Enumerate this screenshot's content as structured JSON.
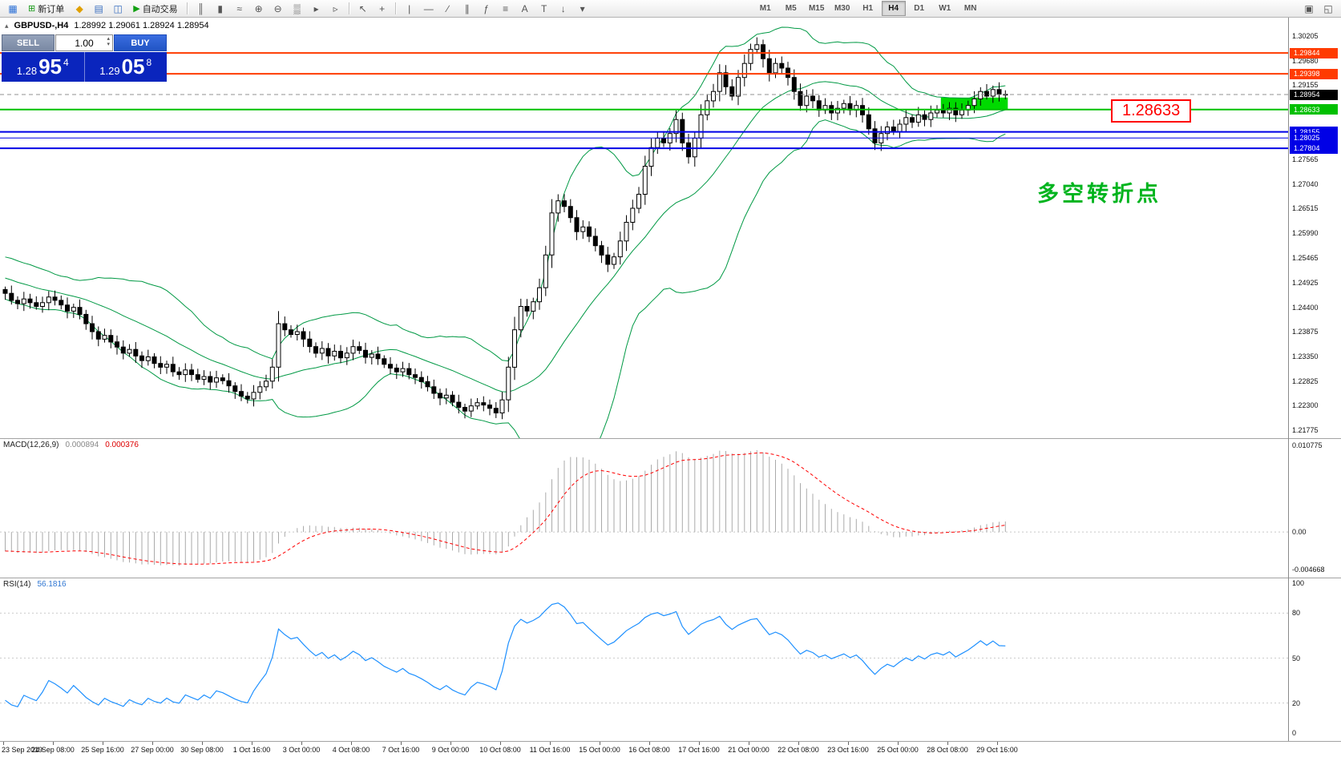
{
  "toolbar": {
    "items": [
      {
        "type": "icon",
        "name": "app-icon",
        "glyph": "▦",
        "color": "#2a6fd6"
      },
      {
        "type": "button",
        "name": "new-order-button",
        "glyph": "⊞",
        "glyph_color": "#1a9a1a",
        "label": "新订单"
      },
      {
        "type": "icon",
        "name": "gold-icon",
        "glyph": "◆",
        "color": "#e0a000"
      },
      {
        "type": "icon",
        "name": "depth-of-market-icon",
        "glyph": "▤",
        "color": "#3a6fc0"
      },
      {
        "type": "icon",
        "name": "terminal-icon",
        "glyph": "◫",
        "color": "#3a6fc0"
      },
      {
        "type": "button",
        "name": "autotrading-button",
        "glyph": "▶",
        "glyph_color": "#12a012",
        "label": "自动交易"
      },
      {
        "type": "sep"
      },
      {
        "type": "icon",
        "name": "bar-chart-icon",
        "glyph": "║"
      },
      {
        "type": "icon",
        "name": "candlestick-chart-icon",
        "glyph": "▮"
      },
      {
        "type": "icon",
        "name": "line-chart-icon",
        "glyph": "≈"
      },
      {
        "type": "icon",
        "name": "zoom-in-icon",
        "glyph": "⊕"
      },
      {
        "type": "icon",
        "name": "zoom-out-icon",
        "glyph": "⊖"
      },
      {
        "type": "icon",
        "name": "tile-windows-icon",
        "glyph": "▒"
      },
      {
        "type": "icon",
        "name": "auto-scroll-icon",
        "glyph": "▸"
      },
      {
        "type": "icon",
        "name": "chart-shift-icon",
        "glyph": "▹"
      },
      {
        "type": "sep"
      },
      {
        "type": "icon",
        "name": "cursor-icon",
        "glyph": "↖"
      },
      {
        "type": "icon",
        "name": "crosshair-icon",
        "glyph": "+"
      },
      {
        "type": "sep"
      },
      {
        "type": "icon",
        "name": "vertical-line-icon",
        "glyph": "|"
      },
      {
        "type": "icon",
        "name": "horizontal-line-icon",
        "glyph": "—"
      },
      {
        "type": "icon",
        "name": "trendline-icon",
        "glyph": "∕"
      },
      {
        "type": "icon",
        "name": "equidistant-channel-icon",
        "glyph": "∥"
      },
      {
        "type": "icon",
        "name": "fibonacci-icon",
        "glyph": "ƒ"
      },
      {
        "type": "icon",
        "name": "shapes-icon",
        "glyph": "≡"
      },
      {
        "type": "icon",
        "name": "text-label-icon",
        "glyph": "A"
      },
      {
        "type": "icon",
        "name": "arrow-object-icon",
        "glyph": "T"
      },
      {
        "type": "icon",
        "name": "arrows-icon",
        "glyph": "↓"
      },
      {
        "type": "icon",
        "name": "objects-dropdown-icon",
        "glyph": "▾"
      }
    ],
    "timeframes": [
      "M1",
      "M5",
      "M15",
      "M30",
      "H1",
      "H4",
      "D1",
      "W1",
      "MN"
    ],
    "active_timeframe": "H4",
    "right_items": [
      {
        "name": "new-chart-icon",
        "glyph": "▣"
      },
      {
        "name": "arrange-windows-icon",
        "glyph": "◱"
      }
    ]
  },
  "chart": {
    "symbol_period": "GBPUSD-,H4",
    "ohlc_text": "1.28992 1.29061 1.28924 1.28954",
    "collapse_icon": "▴"
  },
  "trade_panel": {
    "sell_label": "SELL",
    "buy_label": "BUY",
    "volume": "1.00",
    "spin_up": "▴",
    "spin_down": "▾",
    "sell_price": {
      "prefix": "1.28",
      "pips": "95",
      "point": "4"
    },
    "buy_price": {
      "prefix": "1.29",
      "pips": "05",
      "point": "8"
    }
  },
  "annotations": {
    "price_callout": "1.28633",
    "note": "多空转折点"
  },
  "chart_data": [
    {
      "type": "candlestick",
      "title": "GBPUSD-,H4",
      "timeframe": "H4",
      "ohlc_display": {
        "open": "1.28992",
        "high": "1.29061",
        "low": "1.28924",
        "close": "1.28954"
      },
      "ylim": [
        1.216,
        1.306
      ],
      "x_labels": [
        "23 Sep 2019",
        "24 Sep 08:00",
        "25 Sep 16:00",
        "27 Sep 00:00",
        "30 Sep 08:00",
        "1 Oct 16:00",
        "3 Oct 00:00",
        "4 Oct 08:00",
        "7 Oct 16:00",
        "9 Oct 00:00",
        "10 Oct 08:00",
        "11 Oct 16:00",
        "15 Oct 00:00",
        "16 Oct 08:00",
        "17 Oct 16:00",
        "21 Oct 00:00",
        "22 Oct 08:00",
        "23 Oct 16:00",
        "25 Oct 00:00",
        "28 Oct 08:00",
        "29 Oct 16:00"
      ],
      "scale_labels": [
        "1.30205",
        "1.29680",
        "1.29155",
        "1.27565",
        "1.27040",
        "1.26515",
        "1.25990",
        "1.25465",
        "1.24925",
        "1.24400",
        "1.23875",
        "1.23350",
        "1.22825",
        "1.22300",
        "1.21775"
      ],
      "levels": [
        {
          "label": "1.29844",
          "color": "#ff3b00",
          "width": 2,
          "style": "solid"
        },
        {
          "label": "1.29398",
          "color": "#ff3b00",
          "width": 2,
          "style": "solid"
        },
        {
          "label": "1.28954",
          "color": "#000000",
          "line_color": "#909090",
          "width": 1,
          "style": "dashed"
        },
        {
          "label": "1.28633",
          "color": "#00c000",
          "width": 2,
          "style": "solid"
        },
        {
          "label": "1.28155",
          "color": "#0000e6",
          "width": 2,
          "style": "solid"
        },
        {
          "label": "1.28025",
          "color": "#0000e6",
          "width": 1,
          "style": "solid"
        },
        {
          "label": "1.27804",
          "color": "#0000e6",
          "width": 2,
          "style": "solid"
        }
      ],
      "bollinger": {
        "period": 20,
        "deviation": 2
      },
      "highlight_rect": {
        "from_candle": 151,
        "to_candle": 161,
        "price_top": 1.2889,
        "price_bottom": 1.28633
      },
      "colors": {
        "up": "#ffffff",
        "down": "#000000",
        "outline": "#000000",
        "bollinger": "#009944",
        "highlight": "#00da00"
      },
      "open_first": 1.2478,
      "warmup_closes": [
        1.26,
        1.2592,
        1.2585,
        1.259,
        1.2578,
        1.257,
        1.2575,
        1.2562,
        1.2555,
        1.256,
        1.2548,
        1.254,
        1.2545,
        1.2532,
        1.2525,
        1.253,
        1.2518,
        1.251,
        1.2515,
        1.2505,
        1.2498,
        1.2502,
        1.2492,
        1.2485,
        1.249,
        1.248,
        1.2484,
        1.2476,
        1.248,
        1.2478
      ],
      "closes": [
        1.247,
        1.2455,
        1.2448,
        1.2458,
        1.245,
        1.2442,
        1.245,
        1.2462,
        1.2455,
        1.2445,
        1.2432,
        1.244,
        1.2425,
        1.2405,
        1.2388,
        1.2372,
        1.238,
        1.2366,
        1.2355,
        1.2342,
        1.235,
        1.2336,
        1.2326,
        1.2334,
        1.232,
        1.2312,
        1.2318,
        1.2302,
        1.2296,
        1.2306,
        1.2296,
        1.2286,
        1.2292,
        1.228,
        1.2289,
        1.2283,
        1.2272,
        1.226,
        1.225,
        1.2244,
        1.2258,
        1.227,
        1.2282,
        1.2312,
        1.2405,
        1.2392,
        1.2382,
        1.2388,
        1.2372,
        1.2356,
        1.2342,
        1.2352,
        1.2336,
        1.2346,
        1.2332,
        1.2342,
        1.2356,
        1.2348,
        1.2333,
        1.234,
        1.233,
        1.2318,
        1.231,
        1.2302,
        1.2309,
        1.2296,
        1.229,
        1.2281,
        1.227,
        1.2256,
        1.2246,
        1.2252,
        1.2237,
        1.2226,
        1.2218,
        1.2229,
        1.2236,
        1.2231,
        1.2224,
        1.2214,
        1.2242,
        1.2312,
        1.2392,
        1.2442,
        1.2432,
        1.2452,
        1.2482,
        1.2552,
        1.2642,
        1.2668,
        1.2656,
        1.2632,
        1.2602,
        1.2612,
        1.2592,
        1.2572,
        1.2552,
        1.2532,
        1.2548,
        1.2582,
        1.2622,
        1.2652,
        1.2682,
        1.2742,
        1.2782,
        1.2802,
        1.2792,
        1.2812,
        1.2842,
        1.2792,
        1.2762,
        1.2802,
        1.2852,
        1.2882,
        1.2902,
        1.2942,
        1.2912,
        1.2892,
        1.2932,
        1.2962,
        1.2992,
        1.3002,
        1.2972,
        1.2942,
        1.2962,
        1.2952,
        1.2932,
        1.2902,
        1.2872,
        1.2892,
        1.2882,
        1.2862,
        1.2872,
        1.2856,
        1.2866,
        1.2876,
        1.2862,
        1.2872,
        1.2852,
        1.2822,
        1.2792,
        1.2812,
        1.2826,
        1.2816,
        1.2832,
        1.2846,
        1.2836,
        1.2852,
        1.2842,
        1.2856,
        1.2862,
        1.2856,
        1.2866,
        1.2852,
        1.2862,
        1.2872,
        1.2886,
        1.2902,
        1.2892,
        1.2906,
        1.2896,
        1.28954
      ]
    },
    {
      "type": "macd-histogram",
      "name": "MACD(12,26,9)",
      "value_main": "0.000894",
      "value_signal": "0.000376",
      "params": {
        "fast": 12,
        "slow": 26,
        "signal": 9
      },
      "ylim": [
        -0.004668,
        0.010775
      ],
      "scale_labels": [
        "0.010775",
        "0.00",
        "-0.004668"
      ],
      "colors": {
        "histogram": "#aaaaaa",
        "signal": "#ff0000"
      }
    },
    {
      "type": "line",
      "name": "RSI(14)",
      "value": "56.1816",
      "period": 14,
      "ylim": [
        0,
        100
      ],
      "levels": [
        80,
        50,
        20
      ],
      "scale_labels": [
        "100",
        "80",
        "50",
        "20",
        "0"
      ],
      "colors": {
        "line": "#1e90ff"
      }
    }
  ]
}
